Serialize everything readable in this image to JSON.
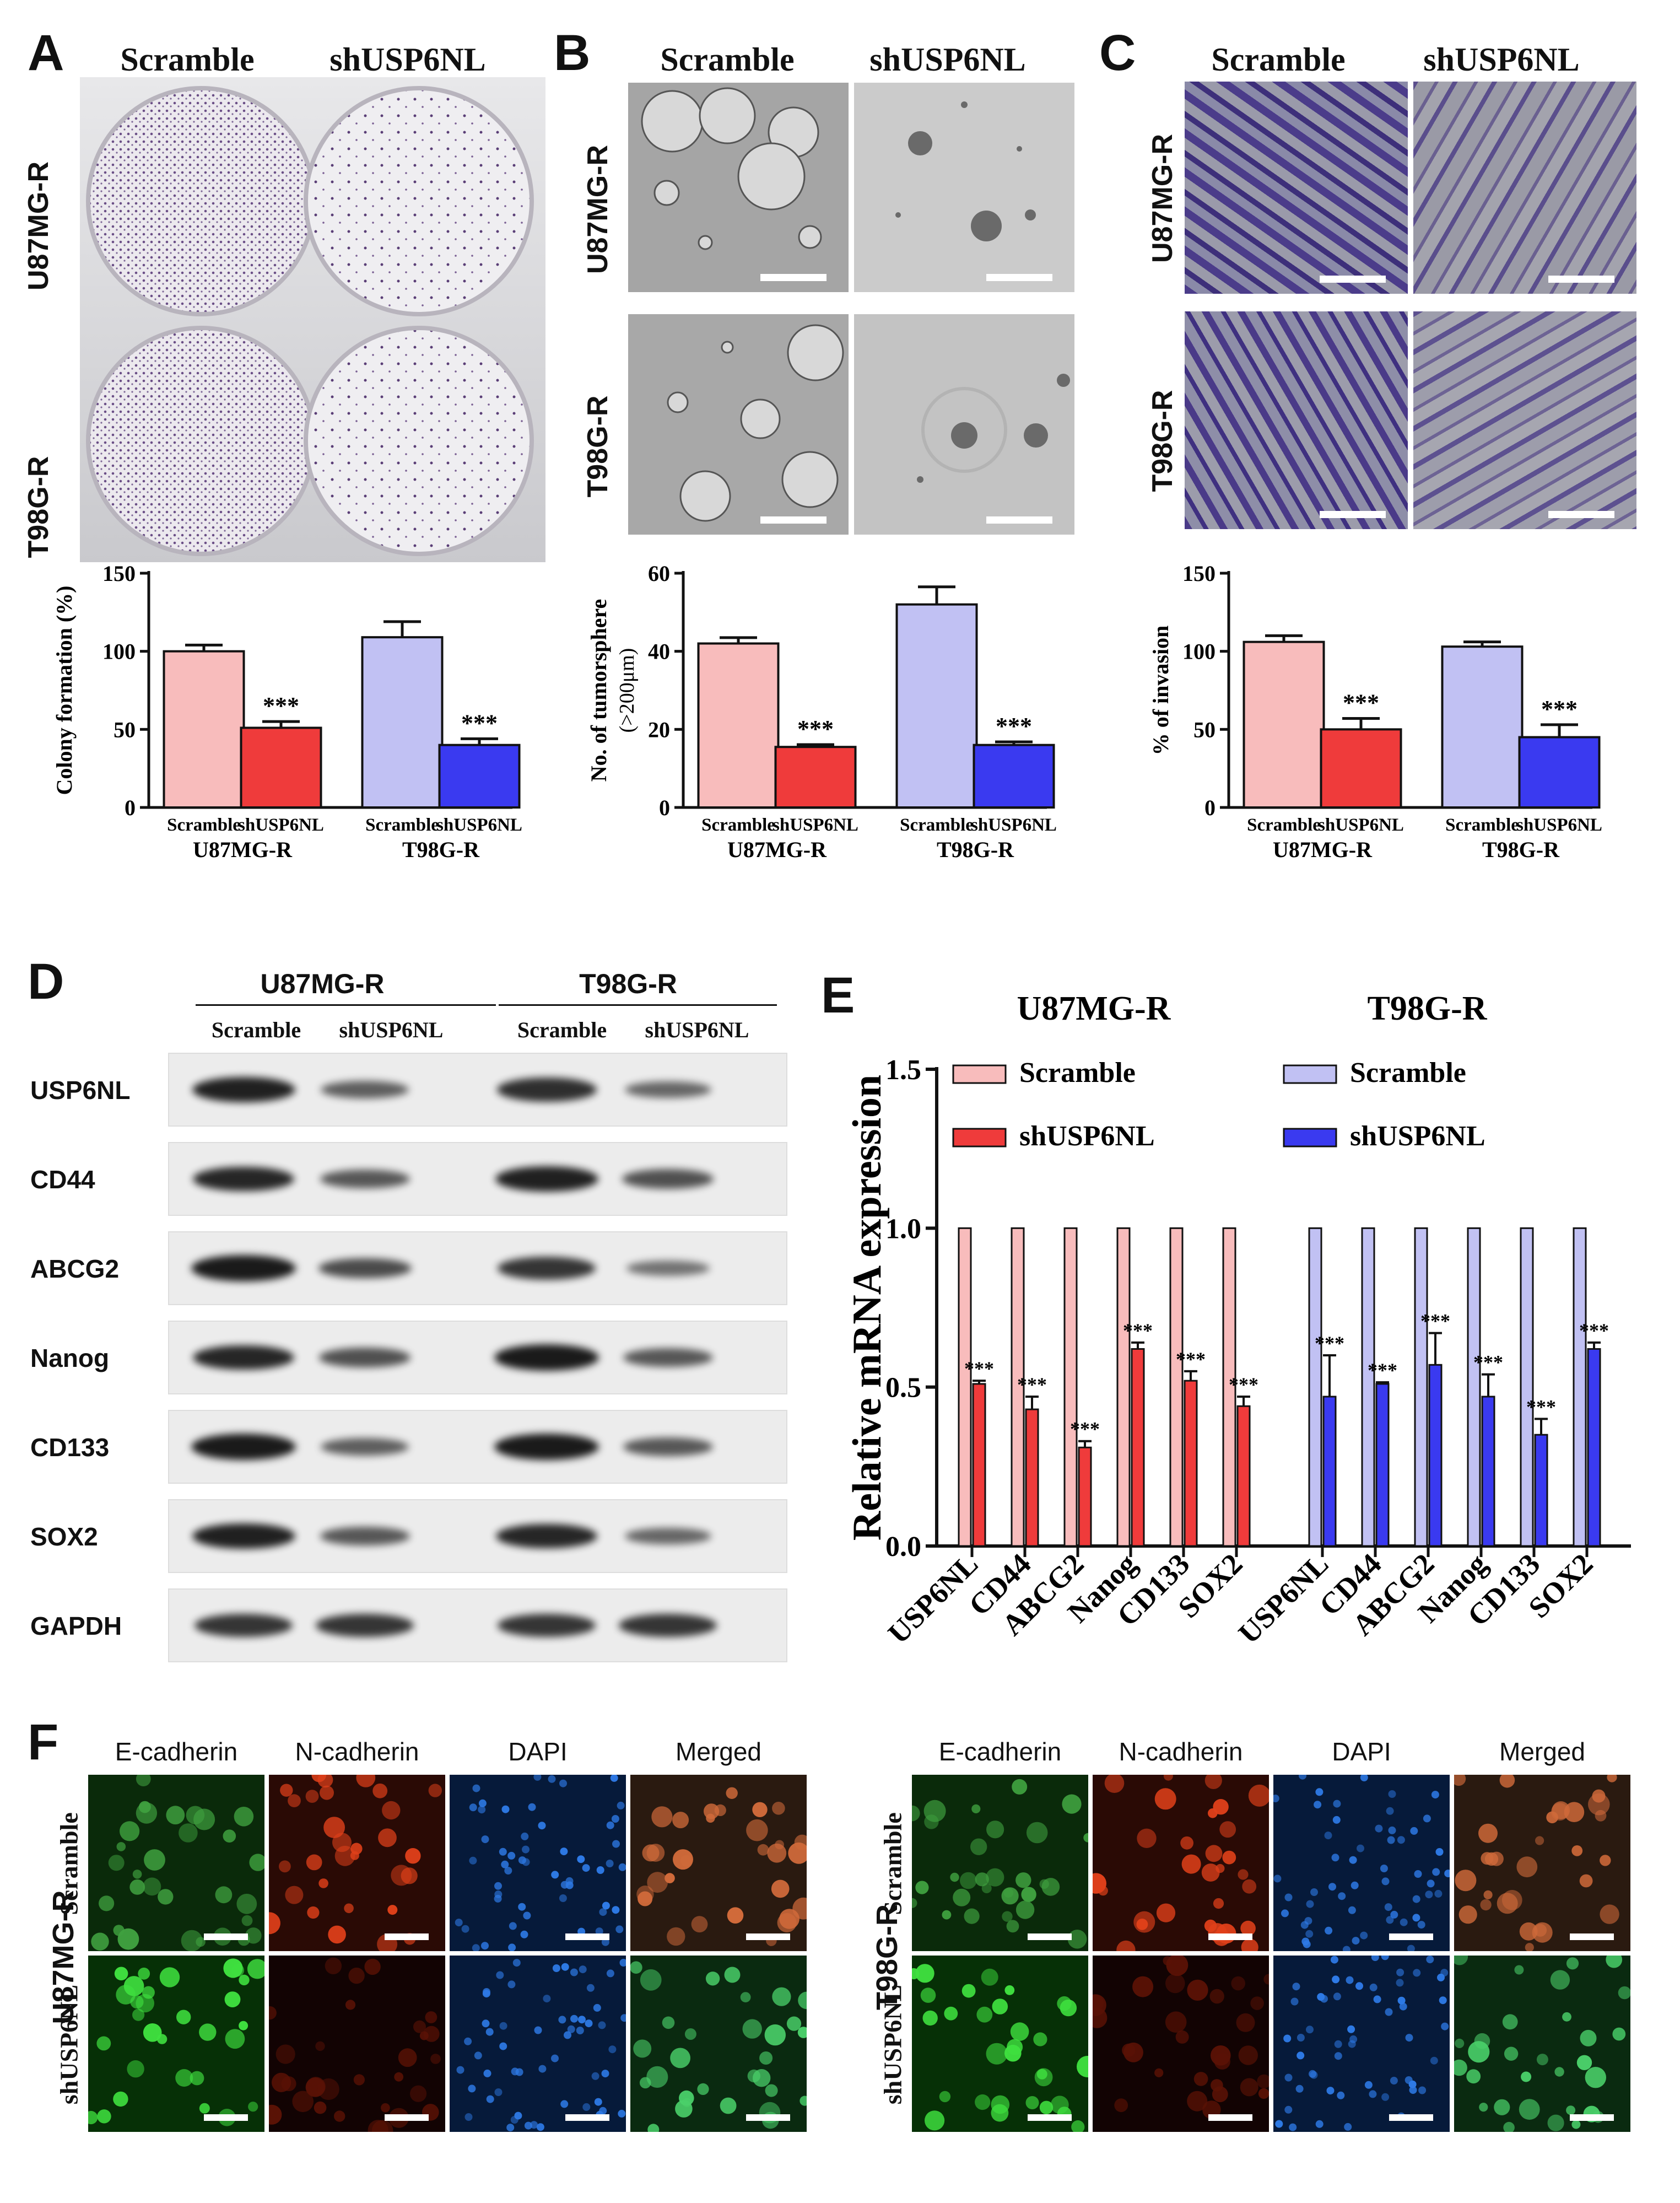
{
  "panels": {
    "A": {
      "label": "A",
      "col_headers": [
        "Scramble",
        "shUSP6NL"
      ],
      "row_labels": [
        "U87MG-R",
        "T98G-R"
      ]
    },
    "B": {
      "label": "B",
      "col_headers": [
        "Scramble",
        "shUSP6NL"
      ],
      "row_labels": [
        "U87MG-R",
        "T98G-R"
      ]
    },
    "C": {
      "label": "C",
      "col_headers": [
        "Scramble",
        "shUSP6NL"
      ],
      "row_labels": [
        "U87MG-R",
        "T98G-R"
      ]
    },
    "D": {
      "label": "D",
      "groups": [
        "U87MG-R",
        "T98G-R"
      ],
      "lanes": [
        "Scramble",
        "shUSP6NL",
        "Scramble",
        "shUSP6NL"
      ],
      "proteins": [
        "USP6NL",
        "CD44",
        "ABCG2",
        "Nanog",
        "CD133",
        "SOX2",
        "GAPDH"
      ]
    },
    "E": {
      "label": "E"
    },
    "F": {
      "label": "F",
      "channels": [
        "E-cadherin",
        "N-cadherin",
        "DAPI",
        "Merged"
      ],
      "blocks": [
        {
          "cell_line": "U87MG-R",
          "conditions": [
            "Scramble",
            "shUSP6NL"
          ]
        },
        {
          "cell_line": "T98G-R",
          "conditions": [
            "Scramble",
            "shUSP6NL"
          ]
        }
      ]
    }
  },
  "chart_data": [
    {
      "type": "bar",
      "panel": "A",
      "ylabel": "Colony formation (%)",
      "ylim": [
        0,
        150
      ],
      "yticks": [
        0,
        50,
        100,
        150
      ],
      "categories": [
        "Scramble",
        "shUSP6NL",
        "Scramble",
        "shUSP6NL"
      ],
      "groups": [
        "U87MG-R",
        "T98G-R"
      ],
      "values": [
        100,
        51,
        109,
        40
      ],
      "errors": [
        4,
        4,
        10,
        4
      ],
      "significance": [
        "",
        "***",
        "",
        "***"
      ],
      "colors": [
        "#f8bcbc",
        "#ef3b3b",
        "#c1c1f3",
        "#3a3af0"
      ]
    },
    {
      "type": "bar",
      "panel": "B",
      "ylabel": "No. of tumorsphere",
      "ylabel2": "(>200μm)",
      "ylim": [
        0,
        60
      ],
      "yticks": [
        0,
        20,
        40,
        60
      ],
      "categories": [
        "Scramble",
        "shUSP6NL",
        "Scramble",
        "shUSP6NL"
      ],
      "groups": [
        "U87MG-R",
        "T98G-R"
      ],
      "values": [
        42,
        15.5,
        52,
        16
      ],
      "errors": [
        1.5,
        0.6,
        4.5,
        0.8
      ],
      "significance": [
        "",
        "***",
        "",
        "***"
      ],
      "colors": [
        "#f8bcbc",
        "#ef3b3b",
        "#c1c1f3",
        "#3a3af0"
      ]
    },
    {
      "type": "bar",
      "panel": "C",
      "ylabel": "% of invasion",
      "ylim": [
        0,
        150
      ],
      "yticks": [
        0,
        50,
        100,
        150
      ],
      "categories": [
        "Scramble",
        "shUSP6NL",
        "Scramble",
        "shUSP6NL"
      ],
      "groups": [
        "U87MG-R",
        "T98G-R"
      ],
      "values": [
        106,
        50,
        103,
        45
      ],
      "errors": [
        4,
        7,
        3,
        8
      ],
      "significance": [
        "",
        "***",
        "",
        "***"
      ],
      "colors": [
        "#f8bcbc",
        "#ef3b3b",
        "#c1c1f3",
        "#3a3af0"
      ]
    },
    {
      "type": "bar",
      "panel": "E",
      "ylabel": "Relative mRNA expression",
      "ylim": [
        0,
        1.5
      ],
      "yticks": [
        "0.0",
        "0.5",
        "1.0",
        "1.5"
      ],
      "group_titles": [
        "U87MG-R",
        "T98G-R"
      ],
      "legend": [
        {
          "name": "Scramble",
          "color": "#f8bcbc"
        },
        {
          "name": "shUSP6NL",
          "color": "#ef3b3b"
        },
        {
          "name": "Scramble",
          "color": "#c1c1f3"
        },
        {
          "name": "shUSP6NL",
          "color": "#3a3af0"
        }
      ],
      "categories": [
        "USP6NL",
        "CD44",
        "ABCG2",
        "Nanog",
        "CD133",
        "SOX2",
        "USP6NL",
        "CD44",
        "ABCG2",
        "Nanog",
        "CD133",
        "SOX2"
      ],
      "series": [
        {
          "name": "Scramble",
          "values": [
            1,
            1,
            1,
            1,
            1,
            1,
            1,
            1,
            1,
            1,
            1,
            1
          ]
        },
        {
          "name": "shUSP6NL",
          "values": [
            0.51,
            0.43,
            0.31,
            0.62,
            0.52,
            0.44,
            0.47,
            0.51,
            0.57,
            0.47,
            0.35,
            0.62
          ],
          "errors": [
            0.01,
            0.04,
            0.02,
            0.02,
            0.03,
            0.03,
            0.13,
            0.005,
            0.1,
            0.07,
            0.05,
            0.02
          ],
          "significance": [
            "***",
            "***",
            "***",
            "***",
            "***",
            "***",
            "***",
            "***",
            "***",
            "***",
            "***",
            "***"
          ]
        }
      ]
    }
  ]
}
